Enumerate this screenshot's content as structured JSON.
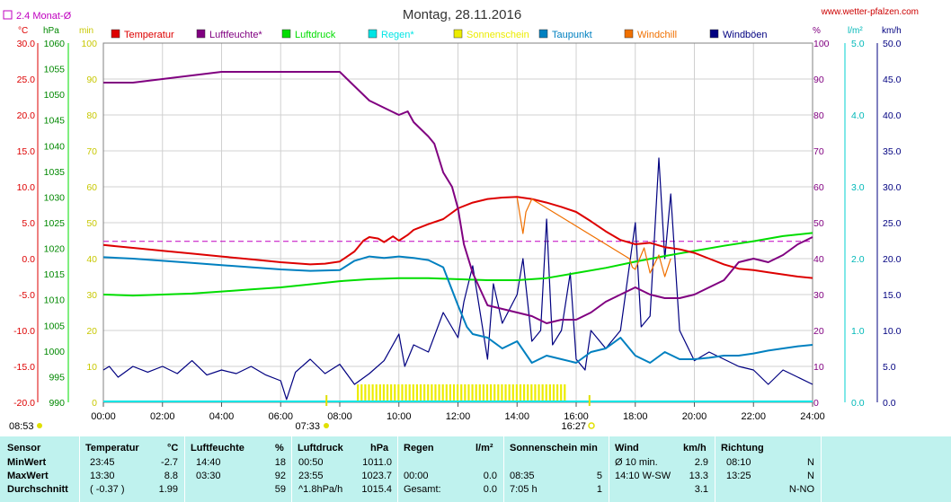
{
  "header": {
    "title": "Montag, 28.11.2016",
    "site": "www.wetter-pfalzen.com",
    "avg_label": "2.4 Monat-Ø"
  },
  "colors": {
    "temperature": "#dd0000",
    "humidity": "#800080",
    "pressure": "#00dd00",
    "rain": "#00e5e5",
    "sunshine": "#ecec00",
    "dewpoint": "#0080c0",
    "windchill": "#f07000",
    "gusts": "#000080",
    "grid": "#d0d0d0",
    "frame": "#808080",
    "stats_bg": "#bff2ee",
    "month_avg": "#c000c0"
  },
  "legend": [
    {
      "label": "Temperatur",
      "color": "#dd0000"
    },
    {
      "label": "Luftfeuchte*",
      "color": "#800080"
    },
    {
      "label": "Luftdruck",
      "color": "#00dd00"
    },
    {
      "label": "Regen*",
      "color": "#00e5e5"
    },
    {
      "label": "Sonnenschein",
      "color": "#ecec00"
    },
    {
      "label": "Taupunkt",
      "color": "#0080c0"
    },
    {
      "label": "Windchill",
      "color": "#f07000"
    },
    {
      "label": "Windböen",
      "color": "#000080"
    }
  ],
  "axis_units": {
    "temp": "°C",
    "press": "hPa",
    "sun": "min",
    "hum": "%",
    "rain": "l/m²",
    "wind": "km/h"
  },
  "axis_ticks": {
    "temp": [
      "30.0",
      "25.0",
      "20.0",
      "15.0",
      "10.0",
      "5.0",
      "0.0",
      "-5.0",
      "-10.0",
      "-15.0",
      "-20.0"
    ],
    "press": [
      "1060",
      "1055",
      "1050",
      "1045",
      "1040",
      "1035",
      "1030",
      "1025",
      "1020",
      "1015",
      "1010",
      "1005",
      "1000",
      "995",
      "990"
    ],
    "sun": [
      "100",
      "90",
      "80",
      "70",
      "60",
      "50",
      "40",
      "30",
      "20",
      "10",
      "0"
    ],
    "hum": [
      "100",
      "90",
      "80",
      "70",
      "60",
      "50",
      "40",
      "30",
      "20",
      "10",
      "0"
    ],
    "rain": [
      "5.0",
      "4.0",
      "3.0",
      "2.0",
      "1.0",
      "0.0"
    ],
    "wind": [
      "50.0",
      "45.0",
      "40.0",
      "35.0",
      "30.0",
      "25.0",
      "20.0",
      "15.0",
      "10.0",
      "5.0",
      "0.0"
    ],
    "x": [
      "00:00",
      "02:00",
      "04:00",
      "06:00",
      "08:00",
      "10:00",
      "12:00",
      "14:00",
      "16:00",
      "18:00",
      "20:00",
      "22:00",
      "24:00"
    ]
  },
  "sun_markers": {
    "sunrise_label": "07:33",
    "sunset_label": "16:27",
    "day_start_label": "08:53"
  },
  "chart_data": {
    "type": "line",
    "x_unit": "hour",
    "xlim": [
      0,
      24
    ],
    "axes": {
      "temperature_C": [
        -20,
        30
      ],
      "pressure_hPa": [
        990,
        1060
      ],
      "sunshine_min": [
        0,
        100
      ],
      "humidity_pct": [
        0,
        100
      ],
      "rain_l_m2": [
        0,
        5
      ],
      "wind_kmh": [
        0,
        50
      ]
    },
    "month_avg_temp": 2.4,
    "series": [
      {
        "name": "Temperatur",
        "axis": "temperature_C",
        "color": "#dd0000",
        "x": [
          0,
          1,
          2,
          3,
          4,
          5,
          6,
          7,
          7.5,
          8,
          8.5,
          8.8,
          9,
          9.3,
          9.5,
          9.8,
          10,
          10.3,
          10.5,
          11,
          11.5,
          12,
          12.5,
          13,
          13.5,
          14,
          14.5,
          15,
          15.5,
          16,
          16.5,
          17,
          17.5,
          18,
          18.5,
          19,
          19.5,
          20,
          20.5,
          21,
          21.5,
          22,
          22.5,
          23,
          23.5,
          24
        ],
        "y": [
          1.9,
          1.5,
          1.1,
          0.7,
          0.3,
          -0.1,
          -0.5,
          -0.8,
          -0.7,
          -0.4,
          1.0,
          2.5,
          3.0,
          2.8,
          2.3,
          3.1,
          2.5,
          3.3,
          4.0,
          4.8,
          5.5,
          7.0,
          7.8,
          8.3,
          8.5,
          8.6,
          8.3,
          7.8,
          7.2,
          6.5,
          5.2,
          3.8,
          2.6,
          2.0,
          2.2,
          1.6,
          1.3,
          0.8,
          0,
          -0.8,
          -1.4,
          -1.6,
          -1.9,
          -2.2,
          -2.5,
          -2.7
        ]
      },
      {
        "name": "Luftfeuchte*",
        "axis": "humidity_pct",
        "color": "#800080",
        "x": [
          0,
          0.5,
          1,
          1.5,
          2,
          2.5,
          3,
          3.5,
          4,
          5,
          6,
          7,
          8,
          8.5,
          9,
          9.5,
          10,
          10.3,
          10.5,
          11,
          11.2,
          11.5,
          11.8,
          12,
          12.2,
          12.5,
          13,
          13.5,
          14,
          14.5,
          15,
          15.5,
          16,
          16.5,
          17,
          17.5,
          18,
          18.5,
          19,
          19.5,
          20,
          20.5,
          21,
          21.5,
          22,
          22.5,
          23,
          23.5,
          24
        ],
        "y": [
          89,
          89,
          89,
          89.5,
          90,
          90.5,
          91,
          91.5,
          92,
          92,
          92,
          92,
          92,
          88,
          84,
          82,
          80,
          81,
          78,
          74,
          72,
          64,
          60,
          54,
          44,
          36,
          27,
          26,
          25,
          24,
          22,
          23,
          23,
          25,
          28,
          30,
          32,
          30,
          29,
          29,
          30,
          32,
          34,
          39,
          40,
          39,
          41,
          44,
          46
        ]
      },
      {
        "name": "Luftdruck",
        "axis": "pressure_hPa",
        "color": "#00dd00",
        "x": [
          0,
          1,
          2,
          3,
          4,
          5,
          6,
          7,
          8,
          9,
          10,
          11,
          12,
          13,
          14,
          15,
          16,
          17,
          18,
          19,
          20,
          21,
          22,
          23,
          24
        ],
        "y": [
          1011.0,
          1010.8,
          1011.0,
          1011.2,
          1011.6,
          1012.0,
          1012.4,
          1013.0,
          1013.6,
          1014.0,
          1014.2,
          1014.2,
          1014.0,
          1013.8,
          1013.8,
          1014.2,
          1015.2,
          1016.2,
          1017.4,
          1018.5,
          1019.5,
          1020.5,
          1021.4,
          1022.4,
          1023.0
        ]
      },
      {
        "name": "Taupunkt",
        "axis": "temperature_C",
        "color": "#0080c0",
        "x": [
          0,
          1,
          2,
          3,
          4,
          5,
          6,
          7,
          8,
          8.5,
          9,
          9.5,
          10,
          10.5,
          11,
          11.5,
          12,
          12.3,
          12.5,
          13,
          13.5,
          14,
          14.5,
          15,
          15.5,
          16,
          16.5,
          17,
          17.5,
          18,
          18.5,
          19,
          19.5,
          20,
          20.5,
          21,
          21.5,
          22,
          22.5,
          23,
          23.5,
          24
        ],
        "y": [
          0.2,
          0,
          -0.3,
          -0.6,
          -0.9,
          -1.2,
          -1.5,
          -1.7,
          -1.6,
          -0.3,
          0.3,
          0.1,
          0.3,
          0.1,
          -0.2,
          -1.2,
          -6.5,
          -9.5,
          -10.5,
          -11.0,
          -12.5,
          -11.5,
          -14.5,
          -13.5,
          -14,
          -14.5,
          -13,
          -12.5,
          -11,
          -13.5,
          -14.5,
          -13,
          -14,
          -14,
          -13.8,
          -13.5,
          -13.5,
          -13.2,
          -12.8,
          -12.5,
          -12.2,
          -12.0
        ]
      },
      {
        "name": "Windchill",
        "axis": "temperature_C",
        "color": "#f07000",
        "x": [
          14,
          14.1,
          14.2,
          14.3,
          14.5,
          17.8,
          17.9,
          18.0,
          18.1,
          18.3,
          18.5,
          18.8,
          19.0,
          19.2
        ],
        "y": [
          8.5,
          6.0,
          3.5,
          6.5,
          8.3,
          0.0,
          -1.2,
          -1.5,
          -0.5,
          1.5,
          -2.0,
          0.5,
          -2.5,
          0.0
        ]
      },
      {
        "name": "Windböen",
        "axis": "wind_kmh",
        "color": "#000080",
        "x": [
          0,
          0.2,
          0.5,
          1,
          1.5,
          2,
          2.5,
          3,
          3.5,
          4,
          4.5,
          5,
          5.5,
          6,
          6.2,
          6.5,
          7,
          7.5,
          8,
          8.5,
          9,
          9.5,
          10,
          10.2,
          10.5,
          11,
          11.5,
          12,
          12.2,
          12.5,
          13,
          13.2,
          13.5,
          14,
          14.2,
          14.5,
          14.8,
          15,
          15.2,
          15.5,
          15.8,
          16,
          16.3,
          16.5,
          17,
          17.5,
          18,
          18.2,
          18.5,
          18.8,
          19,
          19.2,
          19.5,
          20,
          20.5,
          21,
          21.5,
          22,
          22.5,
          23,
          23.5,
          24
        ],
        "y": [
          4.5,
          5.0,
          3.5,
          5.0,
          4.2,
          5.0,
          4.0,
          5.8,
          3.8,
          4.5,
          4.0,
          5.0,
          3.8,
          3.0,
          0.4,
          4.2,
          6.0,
          4.0,
          5.3,
          2.5,
          4.0,
          5.8,
          9.5,
          5.0,
          8.0,
          7.0,
          12.5,
          9.0,
          14.0,
          19.0,
          6.0,
          16.5,
          11.0,
          15.0,
          20.0,
          8.5,
          10.0,
          25.5,
          8.0,
          10.0,
          18.0,
          6.0,
          4.5,
          10.0,
          7.5,
          10.0,
          25.0,
          10.5,
          12.0,
          34.0,
          20.0,
          29.0,
          10.0,
          5.8,
          7.0,
          6.0,
          5.0,
          4.5,
          2.5,
          4.5,
          3.5,
          2.5
        ]
      }
    ],
    "sunshine": {
      "name": "Sonnenschein",
      "start": 8.58,
      "end": 15.6,
      "level_min": 5
    },
    "rain": {
      "name": "Regen*",
      "total": 0.0
    }
  },
  "stats": {
    "headers": {
      "sensor": "Sensor",
      "temp": "Temperatur",
      "temp_unit": "°C",
      "hum": "Luftfeuchte",
      "hum_unit": "%",
      "press": "Luftdruck",
      "press_unit": "hPa",
      "rain": "Regen",
      "rain_unit": "l/m²",
      "sun": "Sonnenschein min",
      "wind": "Wind",
      "wind_unit": "km/h",
      "dir": "Richtung"
    },
    "rows": [
      {
        "label": "MinWert",
        "temp_time": "23:45",
        "temp_val": "-2.7",
        "hum_time": "14:40",
        "hum_val": "18",
        "press_time": "00:50",
        "press_val": "1011.0",
        "rain_time": "",
        "rain_val": "",
        "sun_time": "",
        "sun_val": "",
        "wind_time": "Ø 10 min.",
        "wind_val": "2.9",
        "dir_time": "08:10",
        "dir_val": "N"
      },
      {
        "label": "MaxWert",
        "temp_time": "13:30",
        "temp_val": "8.8",
        "hum_time": "03:30",
        "hum_val": "92",
        "press_time": "23:55",
        "press_val": "1023.7",
        "rain_time": "00:00",
        "rain_val": "0.0",
        "sun_time": "08:35",
        "sun_val": "5",
        "wind_time": "14:10  W-SW",
        "wind_val": "13.3",
        "dir_time": "13:25",
        "dir_val": "N"
      },
      {
        "label": "Durchschnitt",
        "temp_time": "( -0.37 )",
        "temp_val": "1.99",
        "hum_time": "",
        "hum_val": "59",
        "press_time": "^1.8hPa/h",
        "press_val": "1015.4",
        "rain_time": "Gesamt:",
        "rain_val": "0.0",
        "sun_time": "7:05 h",
        "sun_val": "1",
        "wind_time": "",
        "wind_val": "3.1",
        "dir_time": "",
        "dir_val": "N-NO"
      }
    ]
  }
}
